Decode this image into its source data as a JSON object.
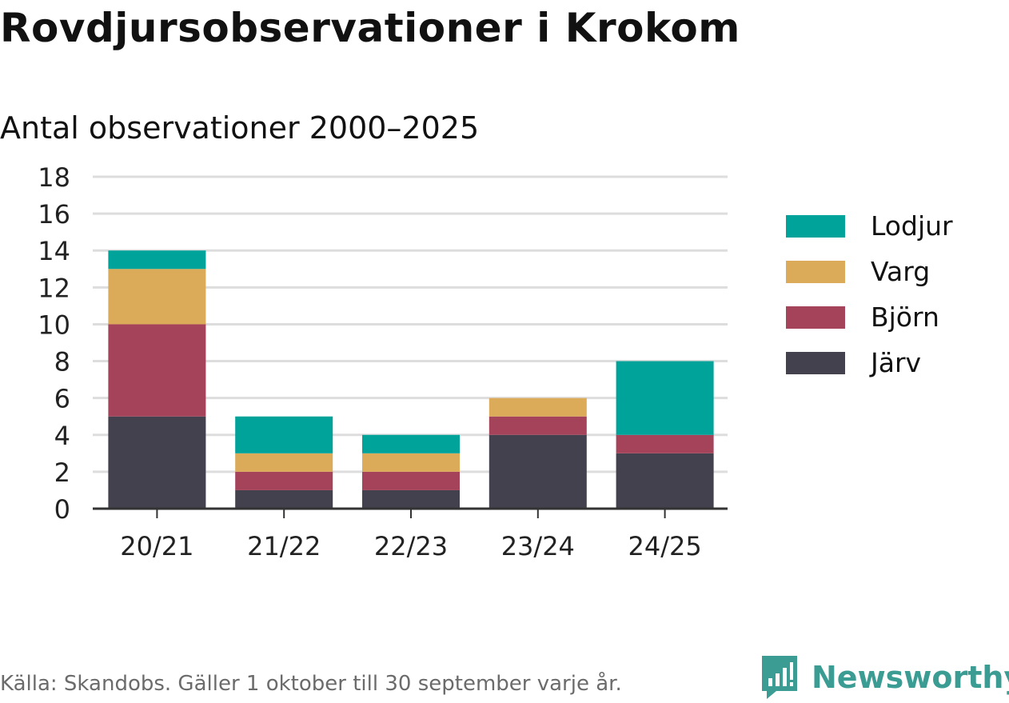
{
  "title": "Rovdjursobservationer i Krokom",
  "subtitle": "Antal observationer 2000–2025",
  "source": "Källa: Skandobs. Gäller 1 oktober till 30 september varje år.",
  "brand": {
    "name": "Newsworthy",
    "icon": "newsworthy-logo-icon",
    "color": "#3a9c93"
  },
  "chart_data": {
    "type": "bar",
    "stacked": true,
    "title": "Antal observationer 2000–2025",
    "xlabel": "",
    "ylabel": "",
    "ylim": [
      0,
      18
    ],
    "yticks": [
      0,
      2,
      4,
      6,
      8,
      10,
      12,
      14,
      16,
      18
    ],
    "grid": true,
    "legend_position": "right",
    "categories": [
      "20/21",
      "21/22",
      "22/23",
      "23/24",
      "24/25"
    ],
    "series": [
      {
        "name": "Järv",
        "color": "#43414e",
        "values": [
          5,
          1,
          1,
          4,
          3
        ]
      },
      {
        "name": "Björn",
        "color": "#a5435b",
        "values": [
          5,
          1,
          1,
          1,
          1
        ]
      },
      {
        "name": "Varg",
        "color": "#dbab5a",
        "values": [
          3,
          1,
          1,
          1,
          0
        ]
      },
      {
        "name": "Lodjur",
        "color": "#00a39a",
        "values": [
          1,
          2,
          1,
          0,
          4
        ]
      }
    ]
  }
}
